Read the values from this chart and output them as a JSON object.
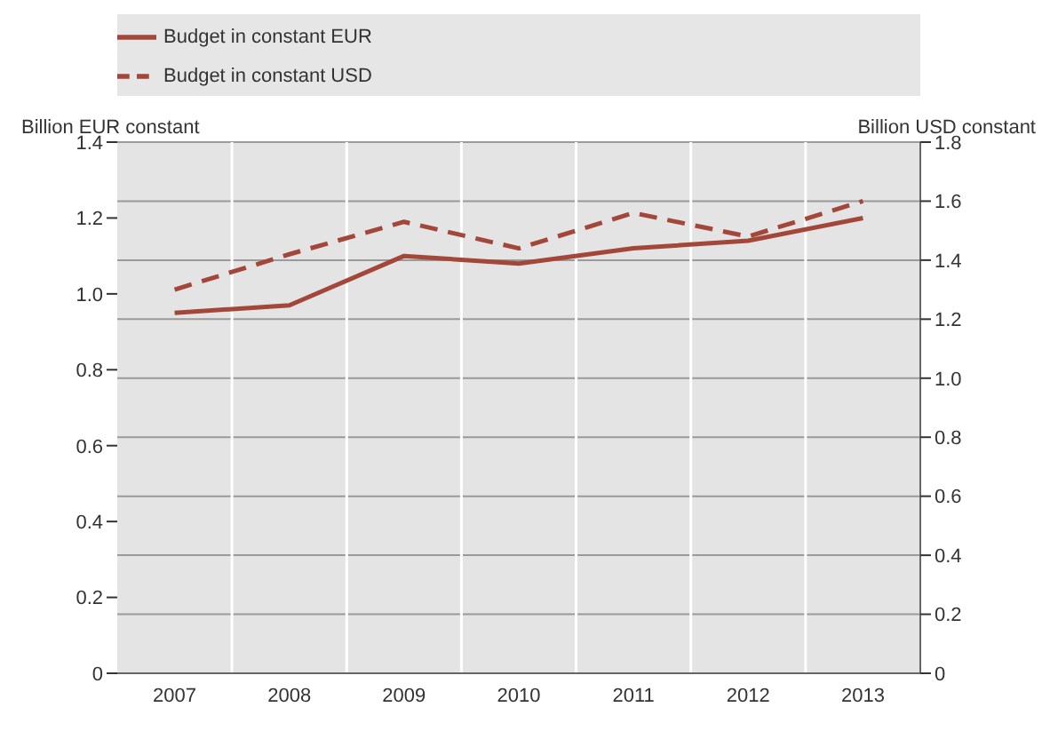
{
  "chart_data": {
    "type": "line",
    "ylabel": "Billion EUR constant",
    "y2label": "Billion USD constant",
    "categories": [
      "2007",
      "2008",
      "2009",
      "2010",
      "2011",
      "2012",
      "2013"
    ],
    "series": [
      {
        "name": "Budget in constant EUR",
        "color": "#a3473b",
        "line_style": "solid",
        "values": [
          0.95,
          0.97,
          1.1,
          1.08,
          1.12,
          1.14,
          1.2
        ]
      },
      {
        "name": "Budget in constant USD",
        "color": "#a3473b",
        "line_style": "dashed",
        "axis": "y2",
        "values": [
          1.3,
          1.42,
          1.53,
          1.44,
          1.56,
          1.48,
          1.6
        ]
      }
    ],
    "ylim": [
      0,
      1.4
    ],
    "yticks": [
      0,
      0.2,
      0.4,
      0.6,
      0.8,
      {
        "value": 1,
        "label": "1.0"
      },
      1.2,
      1.4
    ],
    "y2lim": [
      0,
      1.8
    ],
    "y2ticks": [
      0,
      0.2,
      0.4,
      0.6,
      0.8,
      {
        "value": 1,
        "label": "1.0"
      },
      1.2,
      1.4,
      1.6,
      1.8
    ],
    "grid": "y",
    "legend": "top",
    "marker": "none"
  }
}
